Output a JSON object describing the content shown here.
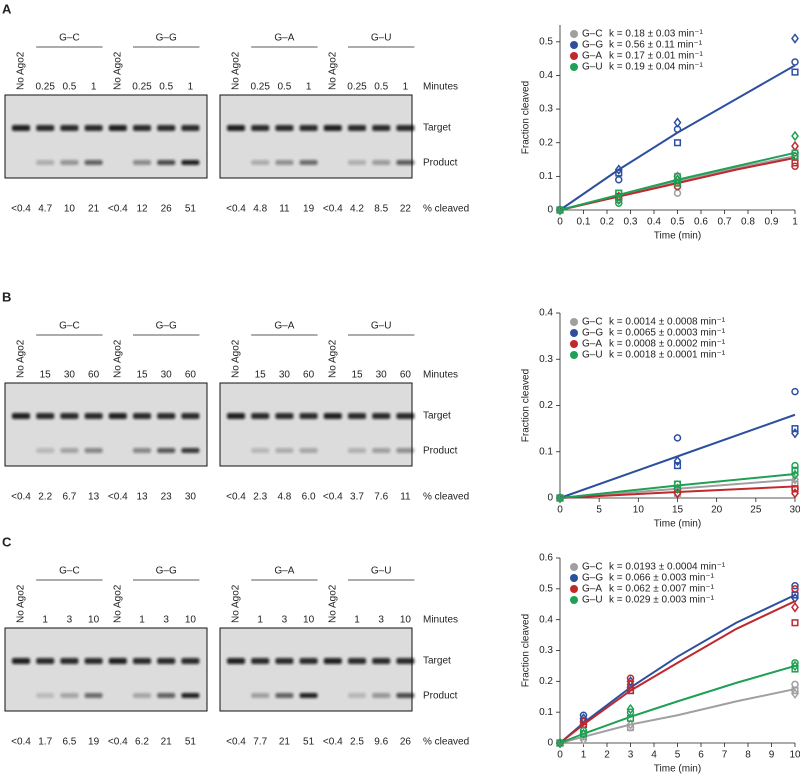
{
  "figure": {
    "row_labels": {
      "minutes": "Minutes",
      "target": "Target",
      "product": "Product",
      "cleaved": "% cleaved"
    },
    "panels": [
      {
        "label": "A",
        "gels": [
          {
            "groups": [
              {
                "control": "No Ago2",
                "control_percent": "<0.4",
                "name": "G–C",
                "times": [
                  "0.25",
                  "0.5",
                  "1"
                ],
                "percent": [
                  "4.7",
                  "10",
                  "21"
                ]
              },
              {
                "control": "No Ago2",
                "control_percent": "<0.4",
                "name": "G–G",
                "times": [
                  "0.25",
                  "0.5",
                  "1"
                ],
                "percent": [
                  "12",
                  "26",
                  "51"
                ]
              }
            ]
          },
          {
            "groups": [
              {
                "control": "No Ago2",
                "control_percent": "<0.4",
                "name": "G–A",
                "times": [
                  "0.25",
                  "0.5",
                  "1"
                ],
                "percent": [
                  "4.8",
                  "11",
                  "19"
                ]
              },
              {
                "control": "No Ago2",
                "control_percent": "<0.4",
                "name": "G–U",
                "times": [
                  "0.25",
                  "0.5",
                  "1"
                ],
                "percent": [
                  "4.2",
                  "8.5",
                  "22"
                ]
              }
            ]
          }
        ]
      },
      {
        "label": "B",
        "gels": [
          {
            "groups": [
              {
                "control": "No Ago2",
                "control_percent": "<0.4",
                "name": "G–C",
                "times": [
                  "15",
                  "30",
                  "60"
                ],
                "percent": [
                  "2.2",
                  "6.7",
                  "13"
                ]
              },
              {
                "control": "No Ago2",
                "control_percent": "<0.4",
                "name": "G–G",
                "times": [
                  "15",
                  "30",
                  "60"
                ],
                "percent": [
                  "13",
                  "23",
                  "30"
                ]
              }
            ]
          },
          {
            "groups": [
              {
                "control": "No Ago2",
                "control_percent": "<0.4",
                "name": "G–A",
                "times": [
                  "15",
                  "30",
                  "60"
                ],
                "percent": [
                  "2.3",
                  "4.8",
                  "6.0"
                ]
              },
              {
                "control": "No Ago2",
                "control_percent": "<0.4",
                "name": "G–U",
                "times": [
                  "15",
                  "30",
                  "60"
                ],
                "percent": [
                  "3.7",
                  "7.6",
                  "11"
                ]
              }
            ]
          }
        ]
      },
      {
        "label": "C",
        "gels": [
          {
            "groups": [
              {
                "control": "No Ago2",
                "control_percent": "<0.4",
                "name": "G–C",
                "times": [
                  "1",
                  "3",
                  "10"
                ],
                "percent": [
                  "1.7",
                  "6.5",
                  "19"
                ]
              },
              {
                "control": "No Ago2",
                "control_percent": "<0.4",
                "name": "G–G",
                "times": [
                  "1",
                  "3",
                  "10"
                ],
                "percent": [
                  "6.2",
                  "21",
                  "51"
                ]
              }
            ]
          },
          {
            "groups": [
              {
                "control": "No Ago2",
                "control_percent": "<0.4",
                "name": "G–A",
                "times": [
                  "1",
                  "3",
                  "10"
                ],
                "percent": [
                  "7.7",
                  "21",
                  "51"
                ]
              },
              {
                "control": "No Ago2",
                "control_percent": "<0.4",
                "name": "G–U",
                "times": [
                  "1",
                  "3",
                  "10"
                ],
                "percent": [
                  "2.5",
                  "9.6",
                  "26"
                ]
              }
            ]
          }
        ]
      }
    ]
  },
  "chart_data": [
    {
      "type": "scatter",
      "x_label": "Time (min)",
      "y_label": "Fraction cleaved",
      "xlim": [
        0,
        1
      ],
      "xticks": [
        0,
        0.1,
        0.2,
        0.3,
        0.4,
        0.5,
        0.6,
        0.7,
        0.8,
        0.9,
        1
      ],
      "ylim": [
        0,
        0.55
      ],
      "yticks": [
        0,
        0.1,
        0.2,
        0.3,
        0.4,
        0.5
      ],
      "x": [
        0,
        0.25,
        0.5,
        1
      ],
      "fit_x": [
        0,
        0.25,
        0.5,
        0.75,
        1
      ],
      "series": [
        {
          "name": "G–C",
          "k_label": "k = 0.18 ± 0.03 min⁻¹",
          "color": "#a0a0a0",
          "replicates": [
            {
              "marker": "circle",
              "values": [
                0,
                0.04,
                0.05,
                0.17
              ]
            },
            {
              "marker": "diamond",
              "values": [
                0,
                0.03,
                0.1,
                0.16
              ]
            },
            {
              "marker": "square",
              "values": [
                0,
                0.05,
                0.1,
                0.17
              ]
            }
          ],
          "fit": [
            0,
            0.043,
            0.085,
            0.125,
            0.16
          ]
        },
        {
          "name": "G–G",
          "k_label": "k = 0.56 ± 0.11 min⁻¹",
          "color": "#2d4fa0",
          "replicates": [
            {
              "marker": "circle",
              "values": [
                0,
                0.09,
                0.24,
                0.44
              ]
            },
            {
              "marker": "diamond",
              "values": [
                0,
                0.12,
                0.26,
                0.51
              ]
            },
            {
              "marker": "square",
              "values": [
                0,
                0.11,
                0.2,
                0.41
              ]
            }
          ],
          "fit": [
            0,
            0.12,
            0.23,
            0.33,
            0.43
          ]
        },
        {
          "name": "G–A",
          "k_label": "k = 0.17 ± 0.01 min⁻¹",
          "color": "#c0282d",
          "replicates": [
            {
              "marker": "circle",
              "values": [
                0,
                0.03,
                0.07,
                0.13
              ]
            },
            {
              "marker": "diamond",
              "values": [
                0,
                0.04,
                0.09,
                0.19
              ]
            },
            {
              "marker": "square",
              "values": [
                0,
                0.04,
                0.08,
                0.14
              ]
            }
          ],
          "fit": [
            0,
            0.04,
            0.08,
            0.12,
            0.155
          ]
        },
        {
          "name": "G–U",
          "k_label": "k = 0.19 ± 0.04 min⁻¹",
          "color": "#1fa055",
          "replicates": [
            {
              "marker": "circle",
              "values": [
                0,
                0.02,
                0.1,
                0.17
              ]
            },
            {
              "marker": "diamond",
              "values": [
                0,
                0.03,
                0.09,
                0.22
              ]
            },
            {
              "marker": "square",
              "values": [
                0,
                0.05,
                0.08,
                0.16
              ]
            }
          ],
          "fit": [
            0,
            0.045,
            0.09,
            0.13,
            0.17
          ]
        }
      ]
    },
    {
      "type": "scatter",
      "x_label": "Time (min)",
      "y_label": "Fraction cleaved",
      "xlim": [
        0,
        30
      ],
      "xticks": [
        0,
        5,
        10,
        15,
        20,
        25,
        30
      ],
      "ylim": [
        0,
        0.4
      ],
      "yticks": [
        0,
        0.1,
        0.2,
        0.3,
        0.4
      ],
      "x": [
        0,
        15,
        30
      ],
      "fit_x": [
        0,
        15,
        30
      ],
      "series": [
        {
          "name": "G–C",
          "k_label": "k = 0.0014 ± 0.0008 min⁻¹",
          "color": "#a0a0a0",
          "replicates": [
            {
              "marker": "circle",
              "values": [
                0,
                0.01,
                0.03
              ]
            },
            {
              "marker": "diamond",
              "values": [
                0,
                0.02,
                0.04
              ]
            },
            {
              "marker": "square",
              "values": [
                0,
                0.01,
                0.03
              ]
            }
          ],
          "fit": [
            0,
            0.02,
            0.04
          ]
        },
        {
          "name": "G–G",
          "k_label": "k = 0.0065 ± 0.0003 min⁻¹",
          "color": "#2d4fa0",
          "replicates": [
            {
              "marker": "circle",
              "values": [
                0,
                0.13,
                0.23
              ]
            },
            {
              "marker": "diamond",
              "values": [
                0,
                0.08,
                0.14
              ]
            },
            {
              "marker": "square",
              "values": [
                0,
                0.07,
                0.15
              ]
            }
          ],
          "fit": [
            0,
            0.09,
            0.18
          ]
        },
        {
          "name": "G–A",
          "k_label": "k = 0.0008 ± 0.0002 min⁻¹",
          "color": "#c0282d",
          "replicates": [
            {
              "marker": "circle",
              "values": [
                0,
                0.02,
                0.02
              ]
            },
            {
              "marker": "diamond",
              "values": [
                0,
                0.01,
                0.01
              ]
            },
            {
              "marker": "square",
              "values": [
                0,
                0.02,
                0.02
              ]
            }
          ],
          "fit": [
            0,
            0.013,
            0.025
          ]
        },
        {
          "name": "G–U",
          "k_label": "k = 0.0018 ± 0.0001 min⁻¹",
          "color": "#1fa055",
          "replicates": [
            {
              "marker": "circle",
              "values": [
                0,
                0.03,
                0.07
              ]
            },
            {
              "marker": "diamond",
              "values": [
                0,
                0.02,
                0.05
              ]
            },
            {
              "marker": "square",
              "values": [
                0,
                0.03,
                0.06
              ]
            }
          ],
          "fit": [
            0,
            0.027,
            0.052
          ]
        }
      ]
    },
    {
      "type": "scatter",
      "x_label": "Time (min)",
      "y_label": "Fraction cleaved",
      "xlim": [
        0,
        10
      ],
      "xticks": [
        0,
        1,
        2,
        3,
        4,
        5,
        6,
        7,
        8,
        9,
        10
      ],
      "ylim": [
        0,
        0.6
      ],
      "yticks": [
        0,
        0.1,
        0.2,
        0.3,
        0.4,
        0.5,
        0.6
      ],
      "x": [
        0,
        1,
        3,
        10
      ],
      "fit_x": [
        0,
        1,
        3,
        5,
        7.5,
        10
      ],
      "series": [
        {
          "name": "G–C",
          "k_label": "k = 0.0193 ± 0.0004 min⁻¹",
          "color": "#a0a0a0",
          "replicates": [
            {
              "marker": "circle",
              "values": [
                0,
                0.02,
                0.05,
                0.19
              ]
            },
            {
              "marker": "diamond",
              "values": [
                0,
                0.01,
                0.06,
                0.16
              ]
            },
            {
              "marker": "square",
              "values": [
                0,
                0.02,
                0.05,
                0.17
              ]
            }
          ],
          "fit": [
            0,
            0.02,
            0.06,
            0.09,
            0.135,
            0.175
          ]
        },
        {
          "name": "G–G",
          "k_label": "k = 0.066 ± 0.003 min⁻¹",
          "color": "#2d4fa0",
          "replicates": [
            {
              "marker": "circle",
              "values": [
                0,
                0.09,
                0.18,
                0.51
              ]
            },
            {
              "marker": "diamond",
              "values": [
                0,
                0.08,
                0.2,
                0.47
              ]
            },
            {
              "marker": "square",
              "values": [
                0,
                0.07,
                0.17,
                0.48
              ]
            }
          ],
          "fit": [
            0,
            0.065,
            0.18,
            0.28,
            0.39,
            0.48
          ]
        },
        {
          "name": "G–A",
          "k_label": "k = 0.062 ± 0.007 min⁻¹",
          "color": "#c0282d",
          "replicates": [
            {
              "marker": "circle",
              "values": [
                0,
                0.06,
                0.21,
                0.5
              ]
            },
            {
              "marker": "diamond",
              "values": [
                0,
                0.07,
                0.19,
                0.44
              ]
            },
            {
              "marker": "square",
              "values": [
                0,
                0.06,
                0.17,
                0.39
              ]
            }
          ],
          "fit": [
            0,
            0.06,
            0.17,
            0.26,
            0.37,
            0.46
          ]
        },
        {
          "name": "G–U",
          "k_label": "k = 0.029 ± 0.003 min⁻¹",
          "color": "#1fa055",
          "replicates": [
            {
              "marker": "circle",
              "values": [
                0,
                0.04,
                0.1,
                0.26
              ]
            },
            {
              "marker": "diamond",
              "values": [
                0,
                0.03,
                0.11,
                0.25
              ]
            },
            {
              "marker": "square",
              "values": [
                0,
                0.03,
                0.08,
                0.24
              ]
            }
          ],
          "fit": [
            0,
            0.03,
            0.085,
            0.135,
            0.195,
            0.25
          ]
        }
      ]
    }
  ]
}
